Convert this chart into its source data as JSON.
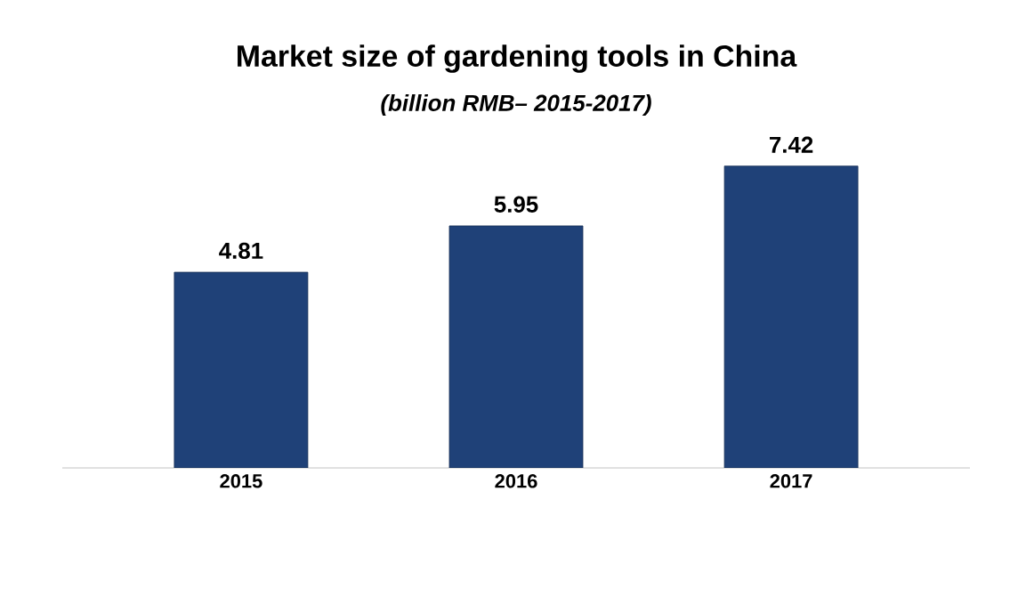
{
  "chart_data": {
    "type": "bar",
    "title": "Market size of gardening tools in China",
    "subtitle": "(billion RMB– 2015-2017)",
    "categories": [
      "2015",
      "2016",
      "2017"
    ],
    "values": [
      4.81,
      5.95,
      7.42
    ],
    "color": "#1f4178",
    "data_labels": true
  }
}
